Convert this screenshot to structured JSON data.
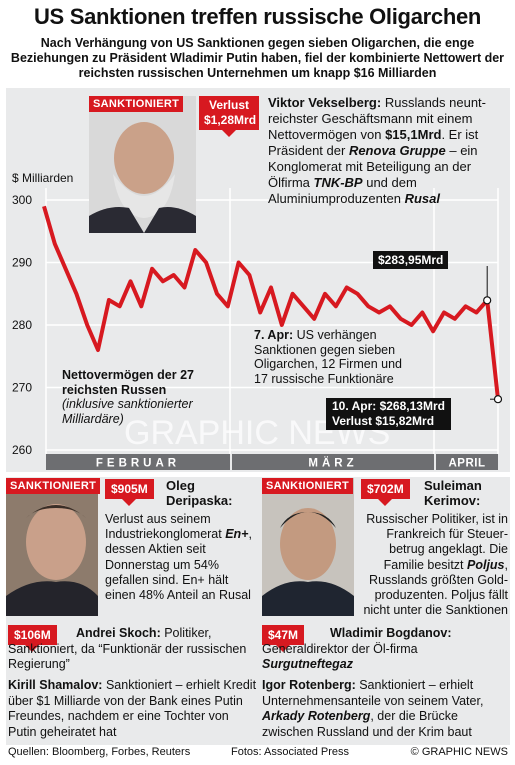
{
  "title": "US Sanktionen treffen russische Oligarchen",
  "subtitle": "Nach Verhängung von US Sanktionen gegen sieben Oligarchen, die enge Beziehungen zu Präsident Wladimir Putin haben, fiel der kombinierte Nettowert der reichsten russischen Unternehmen um knapp $16 Milliarden",
  "chart_data": {
    "type": "line",
    "ylabel": "$ Milliarden",
    "ylim": [
      260,
      300
    ],
    "yticks": [
      260,
      270,
      280,
      290,
      300
    ],
    "months": [
      "FEBRUAR",
      "MÄRZ",
      "APRIL"
    ],
    "values": [
      299,
      293,
      289,
      285,
      280,
      276,
      284,
      283,
      287,
      283,
      289,
      287,
      288,
      286,
      292,
      290,
      285,
      283,
      290,
      288,
      282,
      286,
      280,
      285,
      283,
      281,
      285,
      283,
      286,
      285,
      283,
      282,
      283,
      281,
      280,
      282,
      279,
      282,
      281,
      283,
      282,
      283.95,
      268.13
    ],
    "series_label": "Nettovermögen der 27 reichsten Russen",
    "series_note": "(inklusive sanktionierter Milliardäre)",
    "annotations": {
      "peak_value": "$283,95Mrd",
      "event_date": "7. Apr:",
      "event_text": "US verhängen Sanktionen gegen sieben Oligarchen, 12 Firmen und 17 russische Funktionäre",
      "end_line1": "10. Apr: $268,13Mrd",
      "end_line2": "Verlust $15,82Mrd"
    }
  },
  "tag_sanktioniert": "SANKTIONIERT",
  "tag_sanktioniert2": "SANKtIONIERT",
  "vekselberg": {
    "loss_line1": "Verlust",
    "loss_line2": "$1,28Mrd",
    "name": "Viktor Vekselberg:",
    "t1": " Russlands neunt-reichster Geschäftsmann mit einem Nettovermögen von ",
    "worth": "$15,1Mrd",
    "t2": ". Er ist Präsident der ",
    "renova": "Renova Gruppe",
    "t3": " – ein Konglomerat mit Beteiligung an der Ölfirma ",
    "tnk": "TNK-BP",
    "t4": " und dem Aluminiumproduzenten ",
    "rusal": "Rusal"
  },
  "deripaska": {
    "loss": "$905M",
    "name": "Oleg Deripaska:",
    "t1": "Verlust aus seinem Industriekonglomerat ",
    "enplus": "En+",
    "t2": ", dessen Aktien seit Donnerstag um 54% gefallen sind. En+ hält einen 48% Anteil an Rusal"
  },
  "kerimov": {
    "loss": "$702M",
    "name": "Suleiman Kerimov:",
    "t1": "Russischer Politiker, ist in Frankreich für Steuer-betrug angeklagt. Die Familie besitzt ",
    "poljus": "Poljus",
    "t2": ", Russlands größten Gold-produzenten. Poljus fällt nicht unter die Sanktionen"
  },
  "skoch": {
    "loss": "$106M",
    "name": "Andrei Skoch:",
    "t1": " Politiker, Sanktioniert, da “Funktionär der russischen Regierung”"
  },
  "bogdanov": {
    "loss": "$47M",
    "name": "Wladimir Bogdanov:",
    "t1": " Generaldirektor der Öl-firma ",
    "surgut": "Surgutneftegaz"
  },
  "shamalov": {
    "name": "Kirill Shamalov:",
    "t1": " Sanktioniert – erhielt Kredit über $1 Milliarde von der Bank eines Putin Freundes, nachdem er eine Tochter von Putin geheiratet hat"
  },
  "rotenberg": {
    "name": "Igor Rotenberg:",
    "t1": " Sanktioniert – erhielt Unternehmensanteile von seinem Vater, ",
    "arkady": "Arkady Rotenberg",
    "t2": ", der die Brücke zwischen Russland und der Krim baut"
  },
  "footer": {
    "sources": "Quellen: Bloomberg, Forbes, Reuters",
    "photos": "Fotos: Associated Press",
    "copyright": "© GRAPHIC NEWS"
  },
  "watermark": "GRAPHIC NEWS",
  "colors": {
    "accent": "#d71920",
    "panel": "#e9eaeb",
    "bar": "#6d6e71"
  }
}
